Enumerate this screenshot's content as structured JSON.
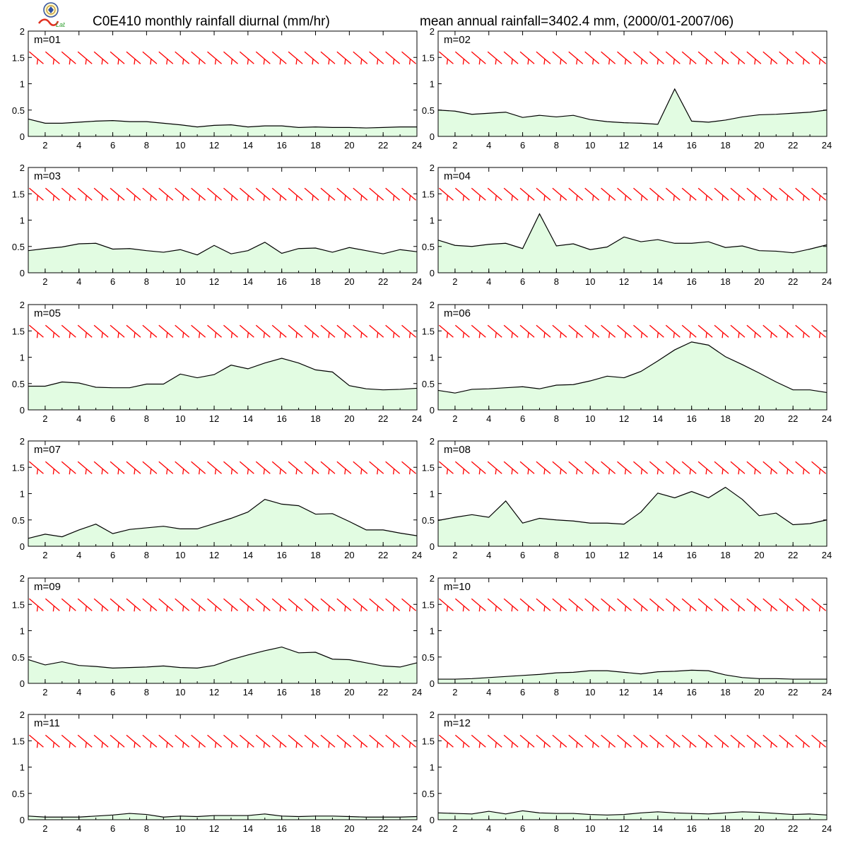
{
  "header": {
    "title_left": "C0E410 monthly rainfall diurnal (mm/hr)",
    "title_right": "mean annual rainfall=3402.4 mm, (2000/01-2007/06)",
    "logo_text": "Lab"
  },
  "colors": {
    "fill": "#e2fce2",
    "line": "#000000",
    "wind_barb": "#ff0000"
  },
  "chart_data": {
    "type": "area",
    "x": [
      1,
      2,
      3,
      4,
      5,
      6,
      7,
      8,
      9,
      10,
      11,
      12,
      13,
      14,
      15,
      16,
      17,
      18,
      19,
      20,
      21,
      22,
      23,
      24
    ],
    "x_ticks": [
      2,
      4,
      6,
      8,
      10,
      12,
      14,
      16,
      18,
      20,
      22,
      24
    ],
    "xlim": [
      1,
      24
    ],
    "ylim": [
      0,
      2
    ],
    "y_ticks": [
      0,
      0.5,
      1,
      1.5,
      2
    ],
    "y_tick_labels": [
      "0",
      "0.5",
      "1",
      "1.5",
      "2"
    ],
    "wind_barb_level": 1.5,
    "panels": [
      {
        "label": "m=01",
        "values": [
          0.33,
          0.25,
          0.25,
          0.27,
          0.29,
          0.3,
          0.28,
          0.28,
          0.25,
          0.22,
          0.18,
          0.21,
          0.22,
          0.18,
          0.2,
          0.2,
          0.17,
          0.18,
          0.17,
          0.17,
          0.16,
          0.17,
          0.18,
          0.18
        ]
      },
      {
        "label": "m=02",
        "values": [
          0.5,
          0.48,
          0.42,
          0.44,
          0.46,
          0.36,
          0.4,
          0.37,
          0.4,
          0.32,
          0.28,
          0.26,
          0.25,
          0.23,
          0.9,
          0.29,
          0.27,
          0.31,
          0.37,
          0.41,
          0.42,
          0.44,
          0.46,
          0.5
        ]
      },
      {
        "label": "m=03",
        "values": [
          0.42,
          0.46,
          0.49,
          0.55,
          0.56,
          0.45,
          0.46,
          0.42,
          0.39,
          0.44,
          0.34,
          0.52,
          0.36,
          0.42,
          0.58,
          0.37,
          0.46,
          0.47,
          0.39,
          0.48,
          0.42,
          0.36,
          0.44,
          0.4
        ]
      },
      {
        "label": "m=04",
        "values": [
          0.62,
          0.52,
          0.5,
          0.54,
          0.56,
          0.46,
          1.12,
          0.51,
          0.55,
          0.44,
          0.49,
          0.68,
          0.59,
          0.63,
          0.56,
          0.56,
          0.59,
          0.48,
          0.51,
          0.42,
          0.41,
          0.38,
          0.45,
          0.53
        ]
      },
      {
        "label": "m=05",
        "values": [
          0.45,
          0.45,
          0.53,
          0.51,
          0.43,
          0.42,
          0.42,
          0.49,
          0.49,
          0.68,
          0.61,
          0.67,
          0.85,
          0.78,
          0.89,
          0.98,
          0.89,
          0.76,
          0.72,
          0.46,
          0.4,
          0.38,
          0.39,
          0.41
        ]
      },
      {
        "label": "m=06",
        "values": [
          0.37,
          0.32,
          0.39,
          0.4,
          0.42,
          0.44,
          0.4,
          0.47,
          0.48,
          0.55,
          0.64,
          0.61,
          0.73,
          0.93,
          1.14,
          1.29,
          1.23,
          1.01,
          0.86,
          0.7,
          0.53,
          0.38,
          0.38,
          0.33
        ]
      },
      {
        "label": "m=07",
        "values": [
          0.15,
          0.23,
          0.18,
          0.31,
          0.42,
          0.24,
          0.32,
          0.35,
          0.38,
          0.33,
          0.33,
          0.43,
          0.53,
          0.65,
          0.89,
          0.8,
          0.77,
          0.61,
          0.62,
          0.47,
          0.31,
          0.31,
          0.25,
          0.2
        ]
      },
      {
        "label": "m=08",
        "values": [
          0.49,
          0.55,
          0.6,
          0.55,
          0.86,
          0.44,
          0.53,
          0.5,
          0.48,
          0.44,
          0.44,
          0.42,
          0.65,
          1.01,
          0.92,
          1.04,
          0.92,
          1.12,
          0.89,
          0.58,
          0.63,
          0.41,
          0.43,
          0.5
        ]
      },
      {
        "label": "m=09",
        "values": [
          0.45,
          0.35,
          0.41,
          0.34,
          0.32,
          0.29,
          0.3,
          0.31,
          0.33,
          0.3,
          0.29,
          0.34,
          0.45,
          0.54,
          0.62,
          0.69,
          0.58,
          0.59,
          0.46,
          0.45,
          0.39,
          0.33,
          0.31,
          0.39
        ]
      },
      {
        "label": "m=10",
        "values": [
          0.08,
          0.08,
          0.09,
          0.11,
          0.13,
          0.15,
          0.17,
          0.2,
          0.21,
          0.24,
          0.24,
          0.21,
          0.18,
          0.22,
          0.23,
          0.25,
          0.24,
          0.16,
          0.11,
          0.09,
          0.09,
          0.08,
          0.08,
          0.08
        ]
      },
      {
        "label": "m=11",
        "values": [
          0.07,
          0.05,
          0.05,
          0.05,
          0.07,
          0.09,
          0.12,
          0.1,
          0.05,
          0.07,
          0.06,
          0.08,
          0.08,
          0.08,
          0.11,
          0.07,
          0.06,
          0.07,
          0.07,
          0.06,
          0.05,
          0.05,
          0.05,
          0.06
        ]
      },
      {
        "label": "m=12",
        "values": [
          0.13,
          0.12,
          0.11,
          0.16,
          0.11,
          0.17,
          0.13,
          0.12,
          0.12,
          0.1,
          0.09,
          0.1,
          0.13,
          0.15,
          0.13,
          0.12,
          0.11,
          0.13,
          0.15,
          0.14,
          0.12,
          0.1,
          0.11,
          0.09
        ]
      }
    ]
  }
}
